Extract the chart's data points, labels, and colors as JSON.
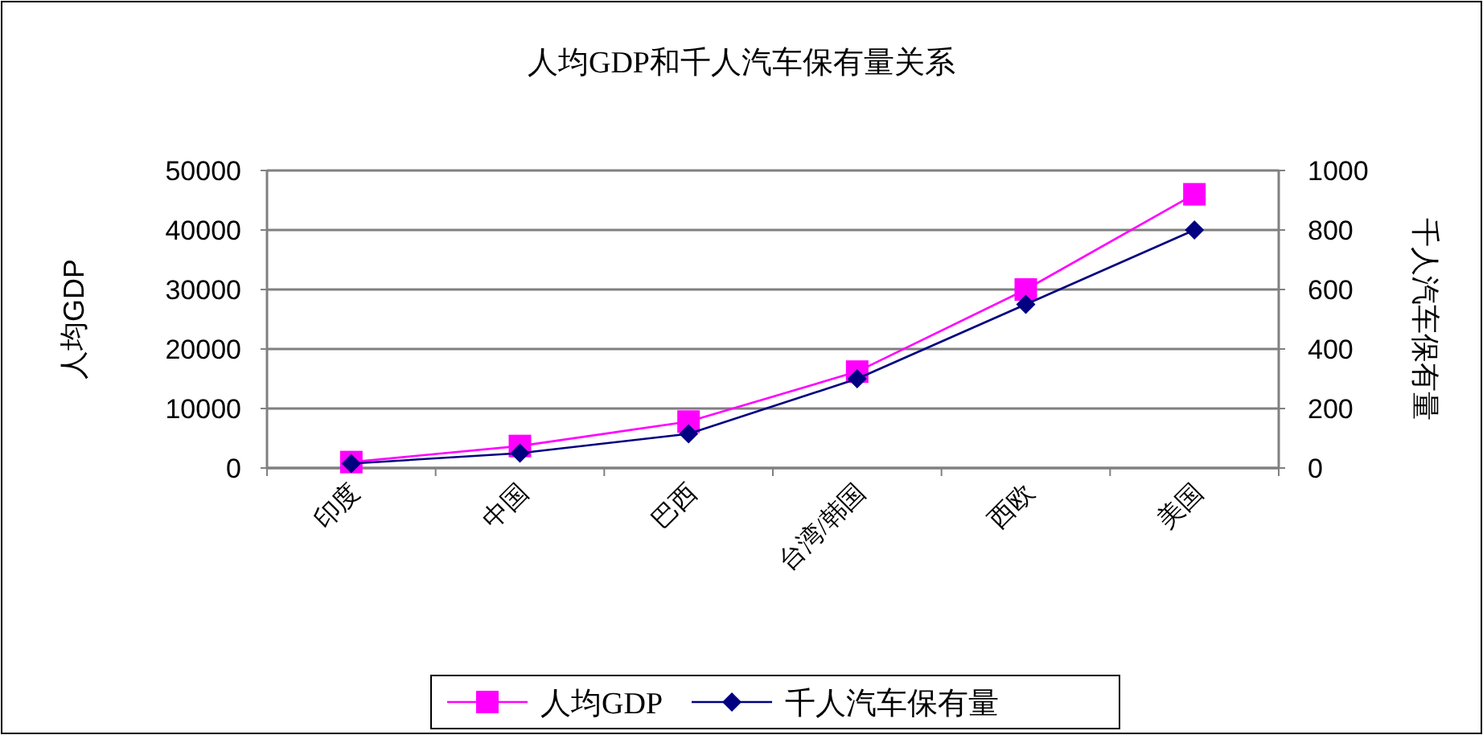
{
  "chart_data": {
    "type": "line",
    "title": "人均GDP和千人汽车保有量关系",
    "ylabel": "人均GDP",
    "y2label": "千人汽车保有量",
    "categories": [
      "印度",
      "中国",
      "巴西",
      "台湾/韩国",
      "西欧",
      "美国"
    ],
    "series": [
      {
        "name": "人均GDP",
        "color": "#ff00ff",
        "marker": "square",
        "values": [
          1000,
          3700,
          7800,
          16200,
          30000,
          46000
        ]
      },
      {
        "name": "千人汽车保有量",
        "color": "#000080",
        "marker": "diamond",
        "axis": "y2",
        "values": [
          15,
          50,
          115,
          300,
          550,
          800
        ]
      }
    ],
    "ylim": [
      0,
      50000
    ],
    "yticks": [
      0,
      10000,
      20000,
      30000,
      40000,
      50000
    ],
    "y2lim": [
      0,
      1000
    ],
    "y2ticks": [
      0,
      200,
      400,
      600,
      800,
      1000
    ],
    "grid": "y",
    "legend": "bottom",
    "line_style": "solid"
  }
}
